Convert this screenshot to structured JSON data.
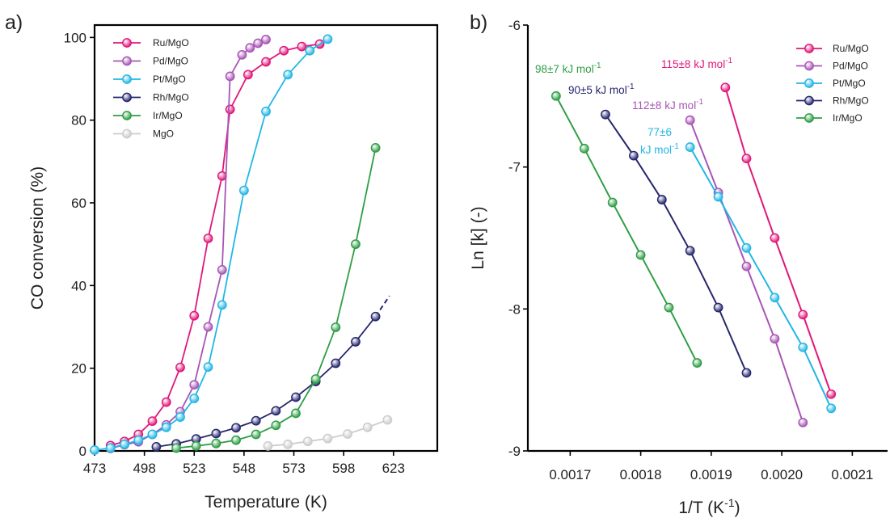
{
  "chart_data": [
    {
      "type": "line",
      "panel_label": "a)",
      "xlabel": "Temperature (K)",
      "ylabel": "CO conversion (%)",
      "xlim": [
        473,
        645
      ],
      "ylim": [
        0,
        103
      ],
      "xticks": [
        473,
        498,
        523,
        548,
        573,
        598,
        623
      ],
      "yticks": [
        0,
        20,
        40,
        60,
        80,
        100
      ],
      "grid": false,
      "legend_position": "top-left",
      "series": [
        {
          "name": "Ru/MgO",
          "color": "#e0177a",
          "points": [
            [
              481,
              1.3
            ],
            [
              488,
              2.3
            ],
            [
              495,
              4.0
            ],
            [
              502,
              7.2
            ],
            [
              509,
              11.8
            ],
            [
              516,
              20.2
            ],
            [
              523,
              32.7
            ],
            [
              530,
              51.4
            ],
            [
              537,
              66.5
            ],
            [
              541,
              82.6
            ],
            [
              550,
              91.0
            ],
            [
              559,
              94.1
            ],
            [
              568,
              96.8
            ],
            [
              577,
              97.8
            ],
            [
              586,
              98.4
            ]
          ]
        },
        {
          "name": "Pd/MgO",
          "color": "#a855b5",
          "points": [
            [
              481,
              0.6
            ],
            [
              488,
              1.5
            ],
            [
              495,
              2.2
            ],
            [
              502,
              4.0
            ],
            [
              509,
              6.3
            ],
            [
              516,
              9.5
            ],
            [
              523,
              16.0
            ],
            [
              530,
              30.0
            ],
            [
              537,
              43.8
            ],
            [
              541,
              90.6
            ],
            [
              547,
              95.8
            ],
            [
              551,
              97.5
            ],
            [
              555,
              98.6
            ],
            [
              559,
              99.5
            ]
          ]
        },
        {
          "name": "Pt/MgO",
          "color": "#22b6e5",
          "points": [
            [
              473,
              0.2
            ],
            [
              481,
              0.7
            ],
            [
              488,
              1.6
            ],
            [
              495,
              2.6
            ],
            [
              502,
              4.0
            ],
            [
              509,
              5.7
            ],
            [
              516,
              8.2
            ],
            [
              523,
              12.7
            ],
            [
              530,
              20.3
            ],
            [
              537,
              35.3
            ],
            [
              548,
              63.0
            ],
            [
              559,
              82.1
            ],
            [
              570,
              91.0
            ],
            [
              581,
              96.8
            ],
            [
              590,
              99.6
            ]
          ]
        },
        {
          "name": "Rh/MgO",
          "color": "#26266e",
          "points": [
            [
              504,
              1.0
            ],
            [
              514,
              1.7
            ],
            [
              524,
              2.9
            ],
            [
              534,
              4.2
            ],
            [
              544,
              5.6
            ],
            [
              554,
              7.3
            ],
            [
              564,
              9.7
            ],
            [
              574,
              13.0
            ],
            [
              584,
              16.8
            ],
            [
              594,
              21.2
            ],
            [
              604,
              26.4
            ],
            [
              614,
              32.5
            ]
          ]
        },
        {
          "name": "Ir/MgO",
          "color": "#2e9e45",
          "points": [
            [
              514,
              0.7
            ],
            [
              524,
              1.2
            ],
            [
              534,
              1.8
            ],
            [
              544,
              2.6
            ],
            [
              554,
              4.0
            ],
            [
              564,
              6.2
            ],
            [
              574,
              9.1
            ],
            [
              584,
              17.4
            ],
            [
              594,
              29.9
            ],
            [
              604,
              50.0
            ],
            [
              614,
              73.3
            ]
          ]
        },
        {
          "name": "MgO",
          "color": "#cccccc",
          "points": [
            [
              560,
              1.2
            ],
            [
              570,
              1.6
            ],
            [
              580,
              2.3
            ],
            [
              590,
              3.0
            ],
            [
              600,
              4.1
            ],
            [
              610,
              5.7
            ],
            [
              620,
              7.5
            ]
          ]
        }
      ],
      "dashed_extension": {
        "series": "Rh/MgO",
        "points": [
          [
            614,
            32.5
          ],
          [
            621,
            37.5
          ]
        ]
      }
    },
    {
      "type": "line",
      "panel_label": "b)",
      "xlabel": "1/T (K",
      "xlabel_sup": "-1",
      "xlabel_end": ")",
      "ylabel": "Ln [k] (-)",
      "xlim": [
        0.00164,
        0.00215
      ],
      "ylim": [
        -9,
        -6
      ],
      "xticks": [
        "0.0017",
        "0.0018",
        "0.0019",
        "0.0020",
        "0.0021"
      ],
      "yticks": [
        "-6",
        "-7",
        "-8",
        "-9"
      ],
      "grid": false,
      "legend_position": "top-right",
      "series": [
        {
          "name": "Ru/MgO",
          "color": "#e0177a",
          "points": [
            [
              0.00192,
              -6.44
            ],
            [
              0.00195,
              -6.94
            ],
            [
              0.00199,
              -7.5
            ],
            [
              0.00203,
              -8.04
            ],
            [
              0.00207,
              -8.6
            ]
          ]
        },
        {
          "name": "Pd/MgO",
          "color": "#a855b5",
          "points": [
            [
              0.00187,
              -6.67
            ],
            [
              0.00191,
              -7.18
            ],
            [
              0.00195,
              -7.7
            ],
            [
              0.00199,
              -8.21
            ],
            [
              0.00203,
              -8.8
            ]
          ]
        },
        {
          "name": "Pt/MgO",
          "color": "#22b6e5",
          "points": [
            [
              0.00187,
              -6.86
            ],
            [
              0.00191,
              -7.21
            ],
            [
              0.00195,
              -7.57
            ],
            [
              0.00199,
              -7.92
            ],
            [
              0.00203,
              -8.27
            ],
            [
              0.00207,
              -8.7
            ]
          ]
        },
        {
          "name": "Rh/MgO",
          "color": "#26266e",
          "points": [
            [
              0.00175,
              -6.63
            ],
            [
              0.00179,
              -6.92
            ],
            [
              0.00183,
              -7.23
            ],
            [
              0.00187,
              -7.59
            ],
            [
              0.00191,
              -7.99
            ],
            [
              0.00195,
              -8.45
            ]
          ]
        },
        {
          "name": "Ir/MgO",
          "color": "#2e9e45",
          "points": [
            [
              0.00168,
              -6.5
            ],
            [
              0.00172,
              -6.87
            ],
            [
              0.00176,
              -7.25
            ],
            [
              0.0018,
              -7.62
            ],
            [
              0.00184,
              -7.99
            ],
            [
              0.00188,
              -8.38
            ]
          ]
        }
      ],
      "annotations": [
        {
          "lines": [
            {
              "text": "98±7 kJ mol",
              "sup": "-1"
            }
          ],
          "color": "#2e9e45"
        },
        {
          "lines": [
            {
              "text": "90±5 kJ mol",
              "sup": "-1"
            }
          ],
          "color": "#26266e"
        },
        {
          "lines": [
            {
              "text": "112±8 kJ mol",
              "sup": "-1"
            }
          ],
          "color": "#a855b5"
        },
        {
          "lines": [
            {
              "text": "115±8 kJ mol",
              "sup": "-1"
            }
          ],
          "color": "#e0177a"
        },
        {
          "lines": [
            {
              "text": "77±6",
              "sup": ""
            },
            {
              "text": "kJ mol",
              "sup": "-1"
            }
          ],
          "color": "#22b6e5"
        }
      ]
    }
  ]
}
